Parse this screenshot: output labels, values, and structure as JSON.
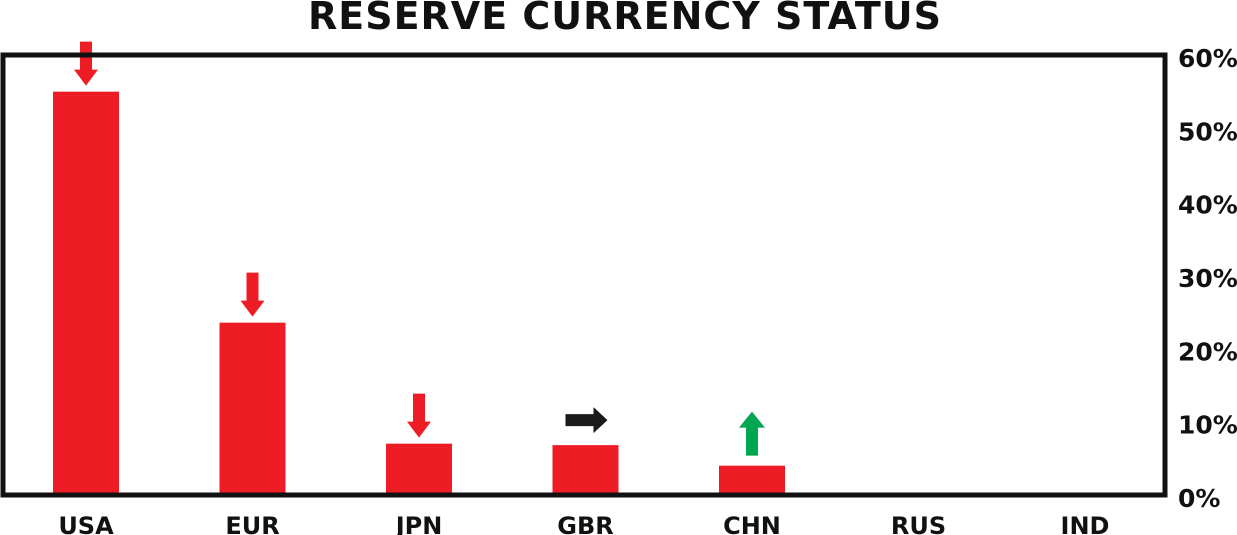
{
  "chart_data": {
    "type": "bar",
    "title": "RESERVE CURRENCY STATUS",
    "categories": [
      "USA",
      "EUR",
      "JPN",
      "GBR",
      "CHN",
      "RUS",
      "IND"
    ],
    "values": [
      55,
      23.5,
      7,
      6.8,
      4,
      0,
      0
    ],
    "trends": [
      "down",
      "down",
      "down",
      "flat",
      "up",
      null,
      null
    ],
    "y_ticks": [
      "0%",
      "10%",
      "20%",
      "30%",
      "40%",
      "50%",
      "60%"
    ],
    "ylim": [
      0,
      60
    ],
    "y_axis_side": "right",
    "grid": false,
    "colors": {
      "bar": "#ee1c25",
      "down": "#ee1c25",
      "flat": "#1a1a1a",
      "up": "#00a651",
      "frame": "#111111"
    }
  }
}
